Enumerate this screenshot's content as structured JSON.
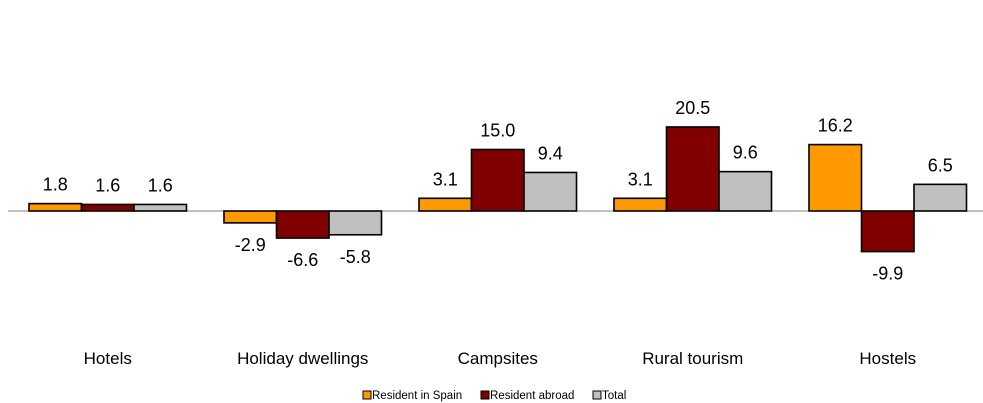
{
  "chart_data": {
    "type": "bar",
    "title": "",
    "xlabel": "",
    "ylabel": "",
    "ylim": [
      -11,
      23
    ],
    "grid": false,
    "legend_position": "bottom",
    "categories": [
      "Hotels",
      "Holiday dwellings",
      "Campsites",
      "Rural tourism",
      "Hostels"
    ],
    "series": [
      {
        "name": "Resident in Spain",
        "color": "#FF9900",
        "values": [
          1.8,
          -2.9,
          3.1,
          3.1,
          16.2
        ],
        "labels": [
          "1.8",
          "-2.9",
          "3.1",
          "3.1",
          "16.2"
        ]
      },
      {
        "name": "Resident abroad",
        "color": "#800000",
        "values": [
          1.6,
          -6.6,
          15.0,
          20.5,
          -9.9
        ],
        "labels": [
          "1.6",
          "-6.6",
          "15.0",
          "20.5",
          "-9.9"
        ]
      },
      {
        "name": "Total",
        "color": "#C0C0C0",
        "values": [
          1.6,
          -5.8,
          9.4,
          9.6,
          6.5
        ],
        "labels": [
          "1.6",
          "-5.8",
          "9.4",
          "9.6",
          "6.5"
        ]
      }
    ]
  }
}
